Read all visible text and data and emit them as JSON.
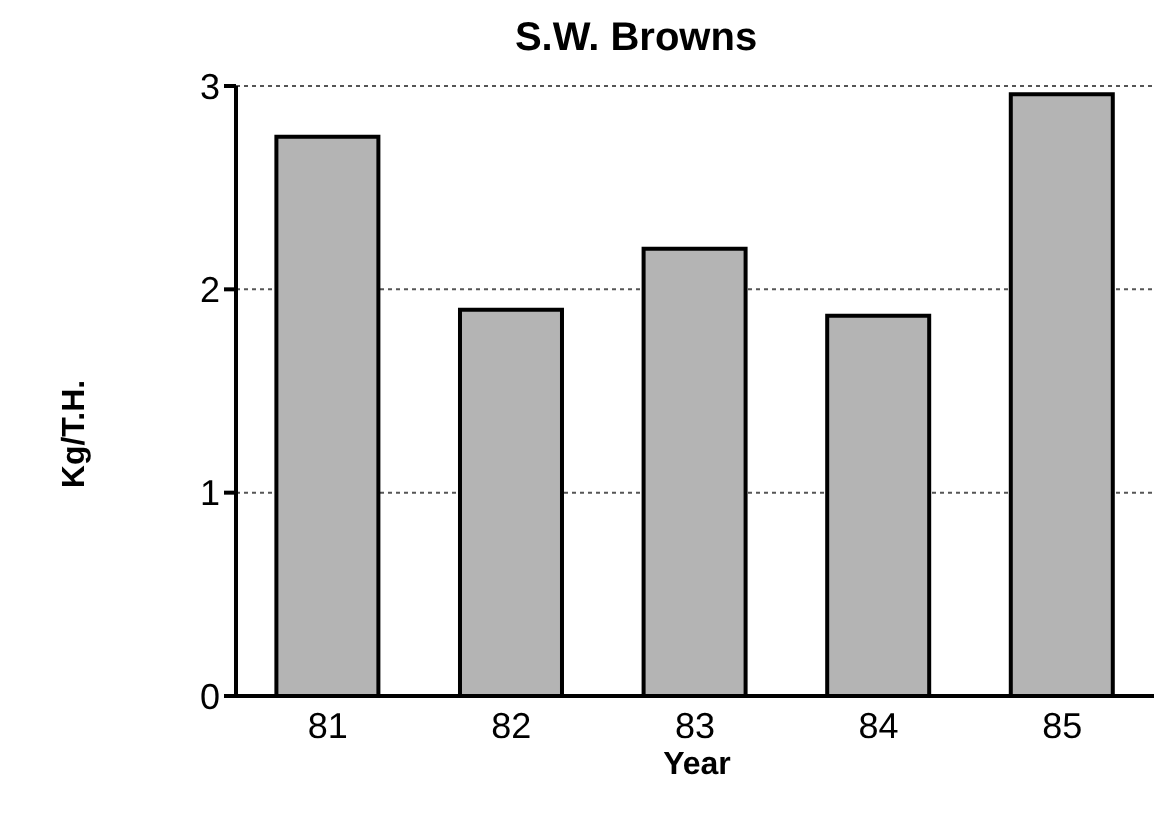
{
  "chart_data": {
    "type": "bar",
    "title": "S.W. Browns",
    "xlabel": "Year",
    "ylabel": "Kg/T.H.",
    "categories": [
      "81",
      "82",
      "83",
      "84",
      "85"
    ],
    "values": [
      2.75,
      1.9,
      2.2,
      1.87,
      2.96
    ],
    "color": "#b4b4b4",
    "ylim": [
      0,
      3
    ],
    "yticks": [
      0,
      1,
      2,
      3
    ],
    "grid": "y"
  }
}
